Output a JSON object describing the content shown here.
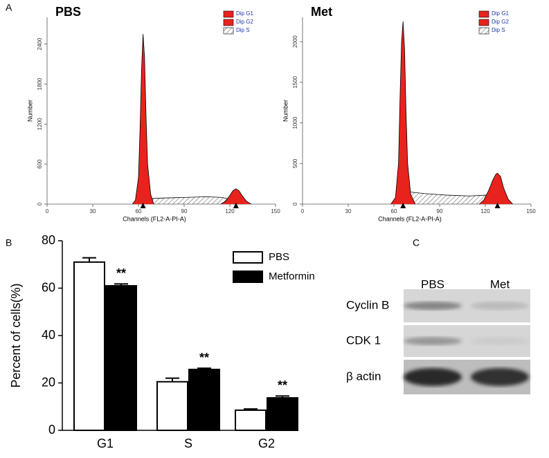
{
  "panel_labels": [
    "A",
    "B",
    "C"
  ],
  "chart_data": [
    {
      "type": "histogram",
      "title": "PBS",
      "xlabel": "Channels (FL2-A-PI-A)",
      "ylabel": "Number",
      "xlim": [
        0,
        150
      ],
      "xticks": [
        0,
        30,
        60,
        90,
        120,
        150
      ],
      "ylim": [
        0,
        2800
      ],
      "yticks": [
        0,
        600,
        1200,
        1800,
        2400
      ],
      "markers": [
        63,
        124
      ],
      "series": [
        {
          "name": "Dip G1",
          "color": "#e8231d",
          "x": [
            56,
            58,
            60,
            61,
            62,
            63,
            64,
            65,
            66,
            68,
            70
          ],
          "values": [
            0,
            60,
            400,
            1100,
            2000,
            2550,
            2200,
            1300,
            600,
            150,
            0
          ]
        },
        {
          "name": "Dip G2",
          "color": "#e8231d",
          "x": [
            114,
            117,
            120,
            122,
            124,
            126,
            128,
            131,
            134
          ],
          "values": [
            0,
            40,
            130,
            200,
            230,
            200,
            130,
            40,
            0
          ]
        },
        {
          "name": "Dip S",
          "color": "#000000",
          "x": [
            58,
            65,
            75,
            90,
            105,
            115,
            122,
            128
          ],
          "values": [
            0,
            80,
            90,
            100,
            110,
            100,
            60,
            0
          ]
        }
      ]
    },
    {
      "type": "histogram",
      "title": "Met",
      "xlabel": "Channels (FL2-A-PI-A)",
      "ylabel": "Number",
      "xlim": [
        0,
        150
      ],
      "xticks": [
        0,
        30,
        60,
        90,
        120,
        150
      ],
      "ylim": [
        0,
        2300
      ],
      "yticks": [
        0,
        500,
        1000,
        1500,
        2000
      ],
      "markers": [
        66,
        128
      ],
      "series": [
        {
          "name": "Dip G1",
          "color": "#e8231d",
          "x": [
            58,
            61,
            63,
            64,
            65,
            66,
            67,
            68,
            69,
            71,
            74
          ],
          "values": [
            0,
            80,
            500,
            1300,
            2000,
            2250,
            1900,
            1100,
            500,
            120,
            0
          ]
        },
        {
          "name": "Dip G2",
          "color": "#e8231d",
          "x": [
            116,
            119,
            122,
            125,
            127,
            128,
            130,
            132,
            135,
            138
          ],
          "values": [
            0,
            50,
            160,
            300,
            370,
            380,
            340,
            200,
            60,
            0
          ]
        },
        {
          "name": "Dip S",
          "color": "#000000",
          "x": [
            60,
            70,
            80,
            95,
            110,
            120,
            126,
            132
          ],
          "values": [
            0,
            150,
            130,
            110,
            100,
            110,
            80,
            0
          ]
        }
      ]
    },
    {
      "type": "bar",
      "ylabel": "Percent of cells(%)",
      "categories": [
        "G1",
        "S",
        "G2"
      ],
      "ylim": [
        0,
        80
      ],
      "yticks": [
        0,
        20,
        40,
        60,
        80
      ],
      "annotations": [
        "**",
        "**",
        "**"
      ],
      "series": [
        {
          "name": "PBS",
          "color": "#ffffff",
          "values": [
            71,
            20.5,
            8.5
          ],
          "errors": [
            1.8,
            1.5,
            0.5
          ]
        },
        {
          "name": "Metformin",
          "color": "#000000",
          "values": [
            61,
            25.7,
            13.7
          ],
          "errors": [
            0.8,
            0.5,
            0.8
          ]
        }
      ]
    }
  ],
  "blot": {
    "columns": [
      "PBS",
      "Met"
    ],
    "rows": [
      "Cyclin B",
      "CDK 1",
      "β actin"
    ]
  }
}
